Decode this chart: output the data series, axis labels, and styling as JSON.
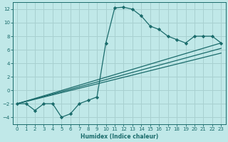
{
  "xlabel": "Humidex (Indice chaleur)",
  "bg_color": "#c0e8e8",
  "grid_color": "#a8d0d0",
  "line_color": "#1a6b6b",
  "xlim": [
    -0.5,
    23.5
  ],
  "ylim": [
    -5,
    13
  ],
  "xticks": [
    0,
    1,
    2,
    3,
    4,
    5,
    6,
    7,
    8,
    9,
    10,
    11,
    12,
    13,
    14,
    15,
    16,
    17,
    18,
    19,
    20,
    21,
    22,
    23
  ],
  "yticks": [
    -4,
    -2,
    0,
    2,
    4,
    6,
    8,
    10,
    12
  ],
  "curve1_x": [
    0,
    1,
    2,
    3,
    4,
    5,
    6,
    7,
    8,
    9,
    10,
    11,
    12,
    13,
    14,
    15,
    16,
    17,
    18,
    19,
    20,
    21,
    22,
    23
  ],
  "curve1_y": [
    -2,
    -2,
    -3,
    -2,
    -2,
    -4,
    -3.5,
    -2,
    -1.5,
    -1,
    7,
    12.2,
    12.3,
    12,
    11,
    9.5,
    9,
    8,
    7.5,
    7,
    8,
    8,
    8,
    7
  ],
  "trend1_x": [
    0,
    23
  ],
  "trend1_y": [
    -2.0,
    7.0
  ],
  "trend2_x": [
    0,
    23
  ],
  "trend2_y": [
    -2.0,
    6.2
  ],
  "trend3_x": [
    0,
    23
  ],
  "trend3_y": [
    -2.0,
    5.5
  ]
}
